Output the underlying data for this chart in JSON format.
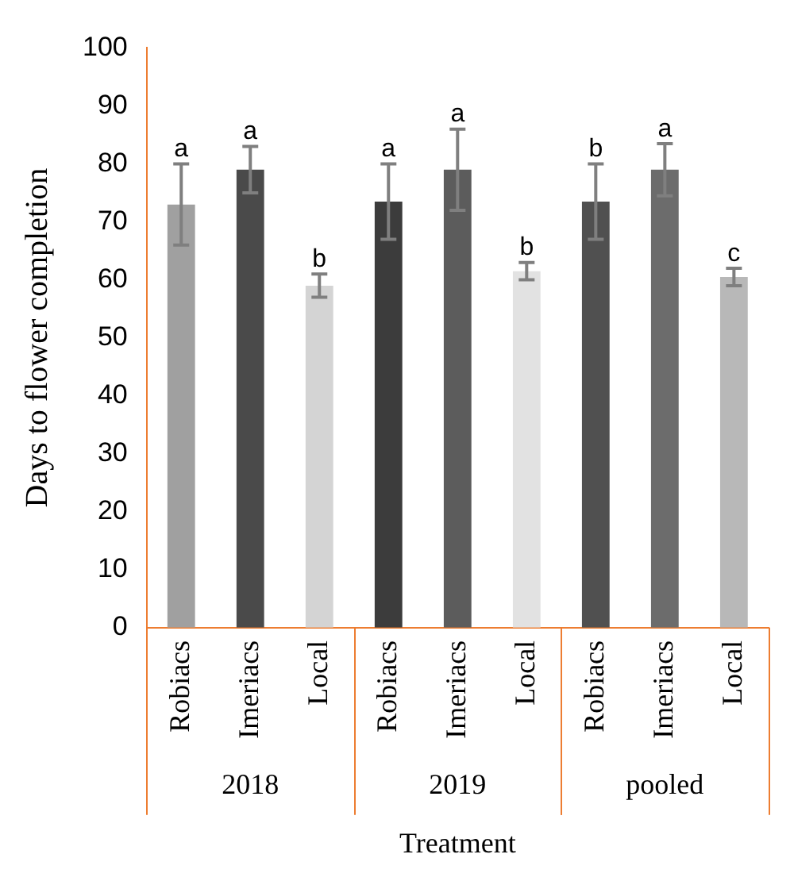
{
  "chart_data": {
    "type": "bar",
    "xlabel": "Treatment",
    "ylabel": "Days to flower completion",
    "categories": [
      "Robiacs",
      "Imeriacs",
      "Local",
      "Robiacs",
      "Imeriacs",
      "Local",
      "Robiacs",
      "Imeriacs",
      "Local"
    ],
    "series": [
      {
        "colors": [
          "#a0a0a0",
          "#4a4a4a",
          "#d4d4d4",
          "#3c3c3c",
          "#5c5c5c",
          "#e2e2e2",
          "#505050",
          "#6c6c6c",
          "#b8b8b8"
        ],
        "values": [
          73,
          79,
          59,
          73.5,
          79,
          61.5,
          73.5,
          79,
          60.5
        ],
        "errors": [
          7,
          4,
          2,
          6.5,
          7,
          1.5,
          6.5,
          4.5,
          1.5
        ],
        "value_labels": [
          "a",
          "a",
          "b",
          "a",
          "a",
          "b",
          "b",
          "a",
          "c"
        ]
      }
    ],
    "annotations": [
      "2018",
      "2019",
      "pooled"
    ],
    "ylim": [
      0,
      100
    ],
    "yticks": [
      0,
      10,
      20,
      30,
      40,
      50,
      60,
      70,
      80,
      90,
      100
    ],
    "grid": false,
    "legend": false
  }
}
